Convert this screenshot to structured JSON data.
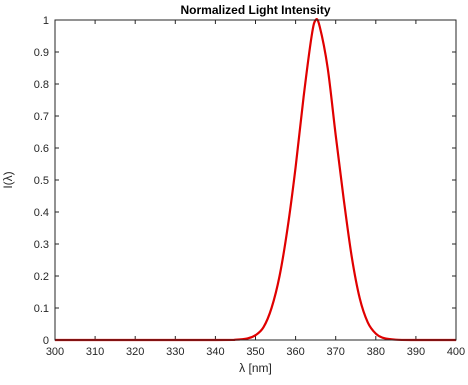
{
  "chart_data": {
    "type": "line",
    "title": "Normalized Light Intensity",
    "xlabel": "λ [nm]",
    "ylabel": "I(λ)",
    "xlim": [
      300,
      400
    ],
    "ylim": [
      0,
      1
    ],
    "x_ticks": [
      "300",
      "310",
      "320",
      "330",
      "340",
      "350",
      "360",
      "370",
      "380",
      "390",
      "400"
    ],
    "y_ticks": [
      "0",
      "0.1",
      "0.2",
      "0.3",
      "0.4",
      "0.5",
      "0.6",
      "0.7",
      "0.8",
      "0.9",
      "1"
    ],
    "grid": false,
    "series": [
      {
        "color": "#e00000",
        "x": [
          300,
          340,
          345,
          348,
          350,
          352,
          354,
          356,
          358,
          360,
          362,
          364,
          365,
          366,
          368,
          370,
          372,
          374,
          376,
          378,
          380,
          382,
          385,
          390,
          400
        ],
        "y": [
          0,
          0,
          0.001,
          0.005,
          0.015,
          0.04,
          0.1,
          0.2,
          0.35,
          0.54,
          0.76,
          0.95,
          1.0,
          0.98,
          0.85,
          0.64,
          0.44,
          0.26,
          0.13,
          0.055,
          0.02,
          0.006,
          0.001,
          0,
          0
        ]
      }
    ]
  }
}
